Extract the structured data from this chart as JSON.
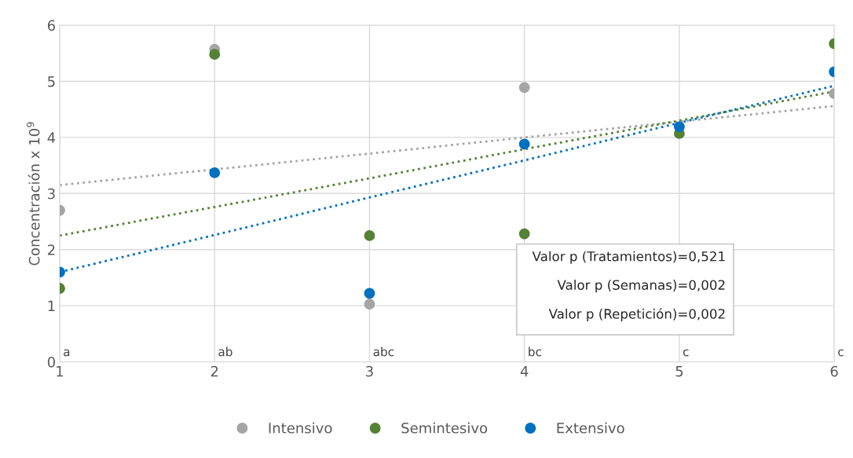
{
  "chart_data": {
    "type": "scatter",
    "ylabel": "Concentración x 10$^{9}$",
    "x": [
      1,
      2,
      3,
      4,
      5,
      6
    ],
    "xlim": [
      1,
      6
    ],
    "xticks": [
      1,
      2,
      3,
      4,
      5,
      6
    ],
    "ylim": [
      0,
      6
    ],
    "yticks": [
      0,
      1,
      2,
      3,
      4,
      5,
      6
    ],
    "grid": true,
    "legend": "bottom",
    "marker": "circle",
    "series": [
      {
        "name": "Intensivo",
        "color": "#a5a5a5",
        "values": [
          2.7,
          5.57,
          1.03,
          4.89,
          null,
          4.78
        ]
      },
      {
        "name": "Semintesivo",
        "color": "#548235",
        "values": [
          1.31,
          5.48,
          2.25,
          2.28,
          4.07,
          5.67
        ]
      },
      {
        "name": "Extensivo",
        "color": "#0070c0",
        "values": [
          1.6,
          3.37,
          1.22,
          3.88,
          4.19,
          5.17
        ]
      },
      {
        "type": "line",
        "line_style": "dotted",
        "marker": "none",
        "color": "#a5a5a5",
        "values": [
          3.15,
          3.43,
          3.71,
          4.0,
          4.28,
          4.56
        ]
      },
      {
        "type": "line",
        "line_style": "dotted",
        "marker": "none",
        "color": "#548235",
        "values": [
          2.25,
          2.76,
          3.27,
          3.79,
          4.3,
          4.82
        ]
      },
      {
        "type": "line",
        "line_style": "dotted",
        "marker": "none",
        "color": "#0070c0",
        "values": [
          1.6,
          2.26,
          2.93,
          3.59,
          4.26,
          4.92
        ]
      }
    ],
    "annotations": [
      "a",
      "ab",
      "abc",
      "bc",
      "c",
      "c",
      "Valor p (Tratamientos)=0,521",
      "Valor p (Semanas)=0,002",
      "Valor p (Repetición)=0,002"
    ]
  }
}
